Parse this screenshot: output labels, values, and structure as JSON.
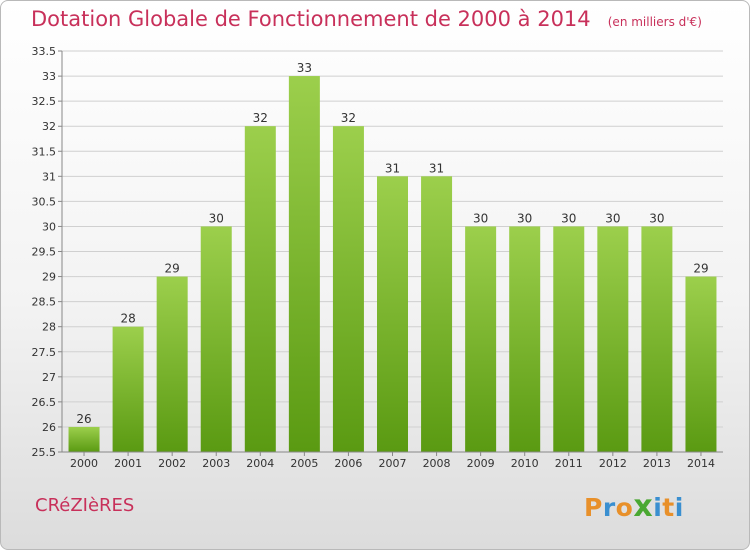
{
  "header": {
    "title": "Dotation Globale de Fonctionnement de 2000 à 2014",
    "unit_note": "(en milliers d'€)"
  },
  "footer": {
    "commune": "CRéZIèRES",
    "logo": {
      "letters": [
        "P",
        "r",
        "o",
        "x",
        "i",
        "t",
        "i"
      ],
      "colors": [
        "#e8902a",
        "#3a8fd0",
        "#e8902a",
        "#4aa832",
        "#3a8fd0",
        "#e8902a",
        "#3a8fd0"
      ]
    }
  },
  "colors": {
    "bar_top": "#9ccf4c",
    "bar_bottom": "#5a9a12",
    "axis": "#888888",
    "grid": "#d0d0d0",
    "title": "#c8305a"
  },
  "chart_data": {
    "type": "bar",
    "categories": [
      "2000",
      "2001",
      "2002",
      "2003",
      "2004",
      "2005",
      "2006",
      "2007",
      "2008",
      "2009",
      "2010",
      "2011",
      "2012",
      "2013",
      "2014"
    ],
    "values": [
      26,
      28,
      29,
      30,
      32,
      33,
      32,
      31,
      31,
      30,
      30,
      30,
      30,
      30,
      29
    ],
    "labels": [
      "26",
      "28",
      "29",
      "30",
      "32",
      "33",
      "32",
      "31",
      "31",
      "30",
      "30",
      "30",
      "30",
      "30",
      "29"
    ],
    "yticks": [
      "25.5",
      "26",
      "26.5",
      "27",
      "27.5",
      "28",
      "28.5",
      "29",
      "29.5",
      "30",
      "30.5",
      "31",
      "31.5",
      "32",
      "32.5",
      "33",
      "33.5"
    ],
    "ylim": [
      25.5,
      33.5
    ],
    "grid": true
  }
}
